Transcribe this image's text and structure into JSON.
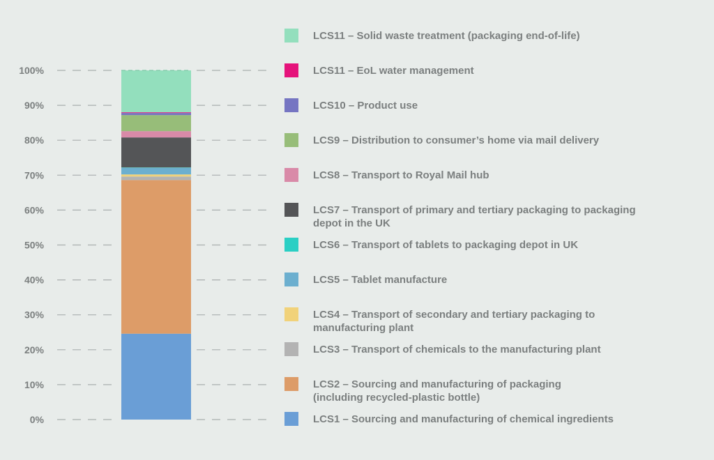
{
  "chart_data": {
    "type": "bar",
    "stacked": true,
    "title": "",
    "xlabel": "",
    "ylabel": "",
    "ylim": [
      0,
      100
    ],
    "y_ticks": [
      "0%",
      "10%",
      "20%",
      "30%",
      "40%",
      "50%",
      "60%",
      "70%",
      "80%",
      "90%",
      "100%"
    ],
    "grid": "dashed",
    "legend_position": "right",
    "series": [
      {
        "name": "LCS1 – Sourcing and manufacturing of chemical ingredients",
        "value": 24.6,
        "color": "#6a9ed6"
      },
      {
        "name": "LCS2 – Sourcing and manufacturing of packaging (including recycled-plastic bottle)",
        "value": 44.0,
        "color": "#dd9c68"
      },
      {
        "name": "LCS3 – Transport of chemicals to the manufacturing plant",
        "value": 1.0,
        "color": "#b3b3b3"
      },
      {
        "name": "LCS4 – Transport of secondary and tertiary packaging to manufacturing plant",
        "value": 0.6,
        "color": "#f1d27a"
      },
      {
        "name": "LCS5 – Tablet manufacture",
        "value": 1.9,
        "color": "#6cafcf"
      },
      {
        "name": "LCS6 – Transport of tablets to packaging depot in UK",
        "value": 0.1,
        "color": "#2acfc4"
      },
      {
        "name": "LCS7 – Transport of primary and tertiary packaging to packaging depot in the UK",
        "value": 8.6,
        "color": "#545557"
      },
      {
        "name": "LCS8 – Transport to Royal Mail hub",
        "value": 1.8,
        "color": "#d98aa8"
      },
      {
        "name": "LCS9 – Distribution to consumer’s home via mail delivery",
        "value": 4.6,
        "color": "#97bd79"
      },
      {
        "name": "LCS10 – Product use",
        "value": 0.6,
        "color": "#7575c2"
      },
      {
        "name": "LCS11 – EoL water management",
        "value": 0.2,
        "color": "#e5137b"
      },
      {
        "name": "LCS11 – Solid waste treatment (packaging end-of-life)",
        "value": 12.0,
        "color": "#93dfbd"
      }
    ]
  },
  "legend": [
    {
      "lines": [
        "LCS11 – Solid waste treatment (packaging end-of-life)"
      ],
      "color": "#93dfbd"
    },
    {
      "lines": [
        "LCS11 – EoL water management"
      ],
      "color": "#e5137b"
    },
    {
      "lines": [
        "LCS10 – Product use"
      ],
      "color": "#7575c2"
    },
    {
      "lines": [
        "LCS9 – Distribution to consumer’s home via mail delivery"
      ],
      "color": "#97bd79"
    },
    {
      "lines": [
        "LCS8 – Transport to Royal Mail hub"
      ],
      "color": "#d98aa8"
    },
    {
      "lines": [
        "LCS7 – Transport of primary and tertiary packaging to packaging",
        "depot in the UK"
      ],
      "color": "#545557"
    },
    {
      "lines": [
        "LCS6 – Transport of tablets to packaging depot in UK"
      ],
      "color": "#2acfc4"
    },
    {
      "lines": [
        "LCS5 – Tablet manufacture"
      ],
      "color": "#6cafcf"
    },
    {
      "lines": [
        "LCS4 – Transport of secondary and tertiary packaging to",
        "manufacturing plant"
      ],
      "color": "#f1d27a"
    },
    {
      "lines": [
        "LCS3 – Transport of chemicals to the manufacturing plant"
      ],
      "color": "#b3b3b3"
    },
    {
      "lines": [
        "LCS2 – Sourcing and manufacturing of packaging",
        "(including recycled-plastic bottle)"
      ],
      "color": "#dd9c68"
    },
    {
      "lines": [
        "LCS1 – Sourcing and manufacturing of chemical ingredients"
      ],
      "color": "#6a9ed6"
    }
  ]
}
